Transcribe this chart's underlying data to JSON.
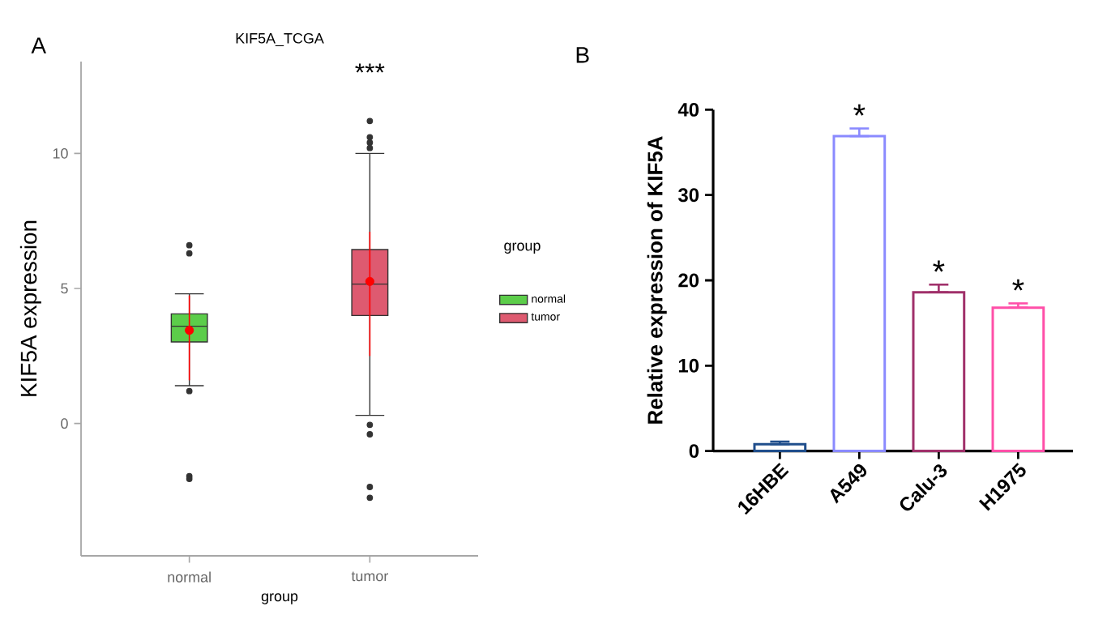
{
  "chart_data": [
    {
      "type": "box",
      "title": "KIF5A_TCGA",
      "xlabel": "group",
      "ylabel": "KIF5A expression",
      "legend_title": "group",
      "categories": [
        "normal",
        "tumor"
      ],
      "ylim": [
        -4.9,
        13.4
      ],
      "yticks": [
        0,
        5,
        10
      ],
      "legend": "right",
      "grid": false,
      "marker": "circle",
      "series": [
        {
          "name": "normal",
          "color": "#5ccd4a",
          "boxes": [
            {
              "low": 1.4,
              "q1": 3.02,
              "median": 3.6,
              "q3": 4.06,
              "high": 4.8,
              "outliers": [
                6.6,
                6.3,
                1.2,
                -1.95,
                -2.05
              ]
            },
            null
          ]
        },
        {
          "name": "tumor",
          "color": "#de5a70",
          "boxes": [
            null,
            {
              "low": 0.3,
              "q1": 4.0,
              "median": 5.16,
              "q3": 6.44,
              "high": 10.0,
              "outliers": [
                11.2,
                10.6,
                10.4,
                10.2,
                -0.05,
                -0.4,
                -2.35,
                -2.75
              ]
            }
          ]
        },
        {
          "type": "scatter",
          "x": [
            "normal",
            "tumor"
          ],
          "values": [
            3.45,
            5.26
          ],
          "errors": [
            [
              1.6,
              4.74
            ],
            [
              2.5,
              7.1
            ]
          ],
          "color": "#ff0000"
        }
      ],
      "annotations": [
        "A",
        "***"
      ]
    },
    {
      "type": "bar",
      "ylabel": "Relative expression of KIF5A",
      "categories": [
        "16HBE",
        "A549",
        "Calu-3",
        "H1975"
      ],
      "values": [
        0.8,
        36.9,
        18.6,
        16.8
      ],
      "errors": [
        [
          0.8,
          1.1
        ],
        [
          36.9,
          37.8
        ],
        [
          18.6,
          19.5
        ],
        [
          16.8,
          17.3
        ]
      ],
      "colors": [
        "#1f4e8c",
        "#8a8aff",
        "#a0306a",
        "#ff4fa8"
      ],
      "ylim": [
        0,
        40
      ],
      "yticks": [
        0,
        10,
        20,
        30,
        40
      ],
      "grid": false,
      "legend": false,
      "annotations": [
        "B",
        "*",
        "*",
        "*"
      ]
    }
  ]
}
